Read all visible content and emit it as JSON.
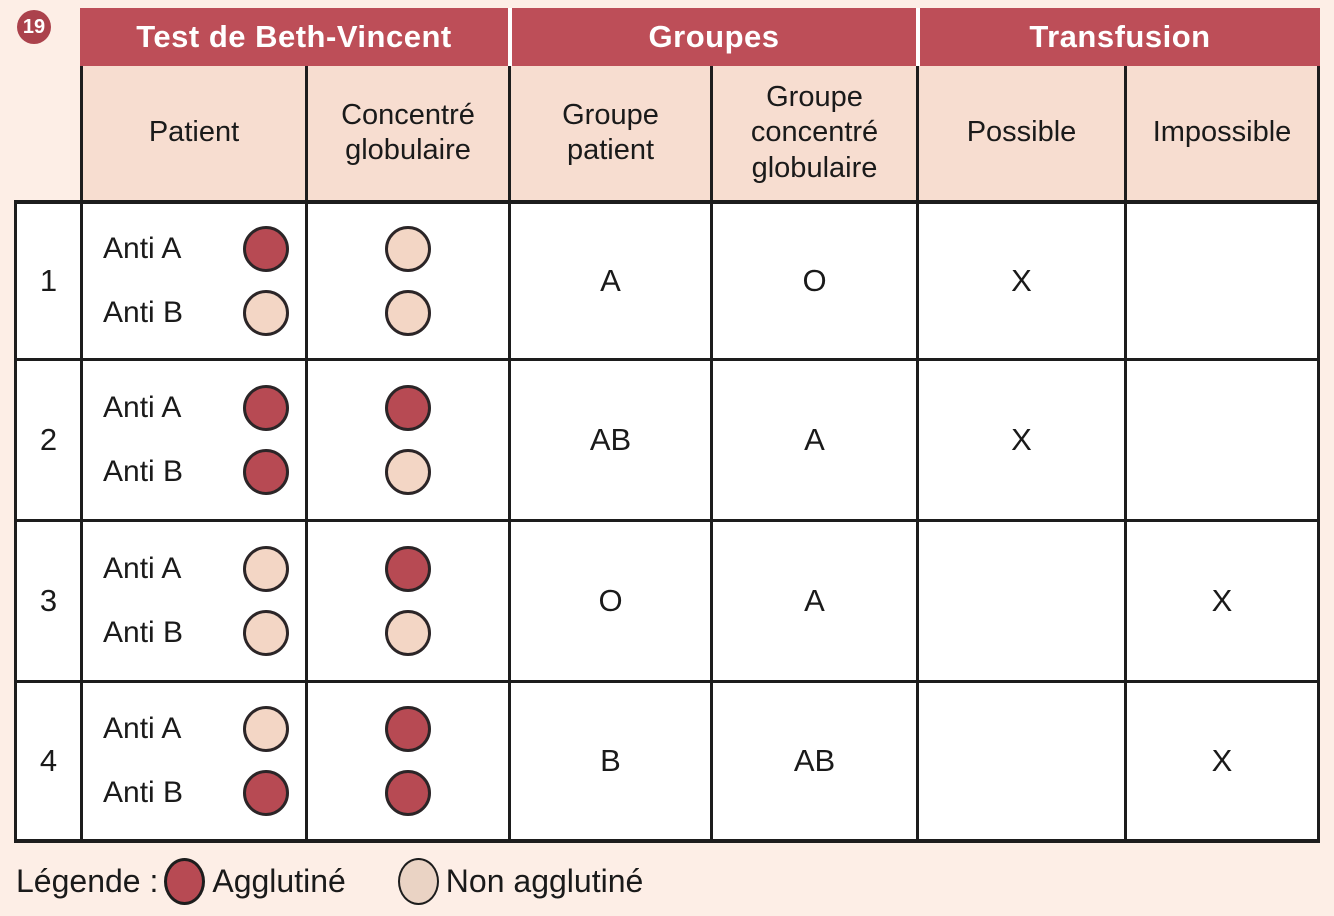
{
  "badge": {
    "number": "19"
  },
  "table": {
    "group_headers": {
      "test": "Test de Beth-Vincent",
      "groupes": "Groupes",
      "transfusion": "Transfusion"
    },
    "column_headers": {
      "patient": "Patient",
      "concentre": "Concentré globulaire",
      "groupe_patient": "Groupe patient",
      "groupe_concentre": "Groupe concentré globulaire",
      "possible": "Possible",
      "impossible": "Impossible"
    },
    "labels": {
      "anti_a": "Anti A",
      "anti_b": "Anti B"
    },
    "rows": [
      {
        "num": "1",
        "patient": {
          "anti_a": "agglutine",
          "anti_b": "non-agglutine"
        },
        "concentre": {
          "anti_a": "non-agglutine",
          "anti_b": "non-agglutine"
        },
        "groupe_patient": "A",
        "groupe_concentre": "O",
        "possible": "X",
        "impossible": ""
      },
      {
        "num": "2",
        "patient": {
          "anti_a": "agglutine",
          "anti_b": "agglutine"
        },
        "concentre": {
          "anti_a": "agglutine",
          "anti_b": "non-agglutine"
        },
        "groupe_patient": "AB",
        "groupe_concentre": "A",
        "possible": "X",
        "impossible": ""
      },
      {
        "num": "3",
        "patient": {
          "anti_a": "non-agglutine",
          "anti_b": "non-agglutine"
        },
        "concentre": {
          "anti_a": "agglutine",
          "anti_b": "non-agglutine"
        },
        "groupe_patient": "O",
        "groupe_concentre": "A",
        "possible": "",
        "impossible": "X"
      },
      {
        "num": "4",
        "patient": {
          "anti_a": "non-agglutine",
          "anti_b": "agglutine"
        },
        "concentre": {
          "anti_a": "agglutine",
          "anti_b": "agglutine"
        },
        "groupe_patient": "B",
        "groupe_concentre": "AB",
        "possible": "",
        "impossible": "X"
      }
    ]
  },
  "legend": {
    "title": "Légende :",
    "agglutine_label": "Agglutiné",
    "non_agglutine_label": "Non agglutiné"
  },
  "colors": {
    "header_red": "#bd4e58",
    "badge_red": "#ab424c",
    "subheader_pink": "#f7ddd0",
    "background": "#fdeee6",
    "agglutine": "#b74a53",
    "non_agglutine": "#f3d6c5",
    "border": "#1d1d1d"
  }
}
